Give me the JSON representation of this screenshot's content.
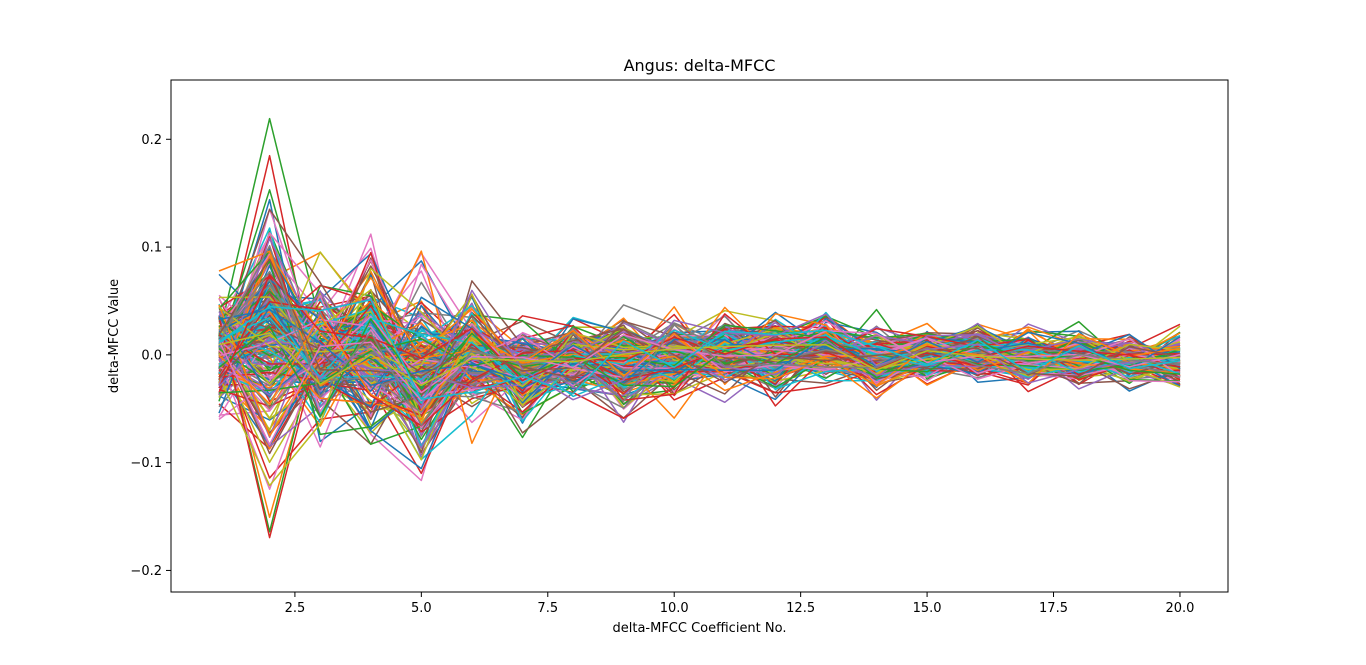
{
  "chart_data": {
    "type": "line",
    "title": "Angus: delta-MFCC",
    "xlabel": "delta-MFCC Coefficient No.",
    "ylabel": "delta-MFCC Value",
    "x": [
      1,
      2,
      3,
      4,
      5,
      6,
      7,
      8,
      9,
      10,
      11,
      12,
      13,
      14,
      15,
      16,
      17,
      18,
      19,
      20
    ],
    "xlim": [
      0.05,
      20.95
    ],
    "ylim": [
      -0.22,
      0.255
    ],
    "xticks": [
      2.5,
      5.0,
      7.5,
      10.0,
      12.5,
      15.0,
      17.5,
      20.0
    ],
    "xtick_labels": [
      "2.5",
      "5.0",
      "7.5",
      "10.0",
      "12.5",
      "15.0",
      "17.5",
      "20.0"
    ],
    "yticks": [
      -0.2,
      -0.1,
      0.0,
      0.1,
      0.2
    ],
    "ytick_labels": [
      "−0.2",
      "−0.1",
      "0.0",
      "0.1",
      "0.2"
    ],
    "grid": false,
    "legend": "none",
    "approx_series_count": 250,
    "spread_envelope": {
      "description": "approximate min/max of all series at each coefficient",
      "max": [
        0.093,
        0.234,
        0.115,
        0.144,
        0.122,
        0.083,
        0.053,
        0.052,
        0.065,
        0.06,
        0.062,
        0.06,
        0.056,
        0.042,
        0.039,
        0.041,
        0.038,
        0.036,
        0.03,
        0.036
      ],
      "min": [
        -0.087,
        -0.209,
        -0.121,
        -0.127,
        -0.161,
        -0.082,
        -0.088,
        -0.058,
        -0.077,
        -0.069,
        -0.053,
        -0.055,
        -0.042,
        -0.053,
        -0.038,
        -0.035,
        -0.044,
        -0.043,
        -0.038,
        -0.044
      ]
    },
    "series_colors": [
      "#1f77b4",
      "#ff7f0e",
      "#2ca02c",
      "#d62728",
      "#9467bd",
      "#8c564b",
      "#e377c2",
      "#7f7f7f",
      "#bcbd22",
      "#17becf"
    ]
  }
}
